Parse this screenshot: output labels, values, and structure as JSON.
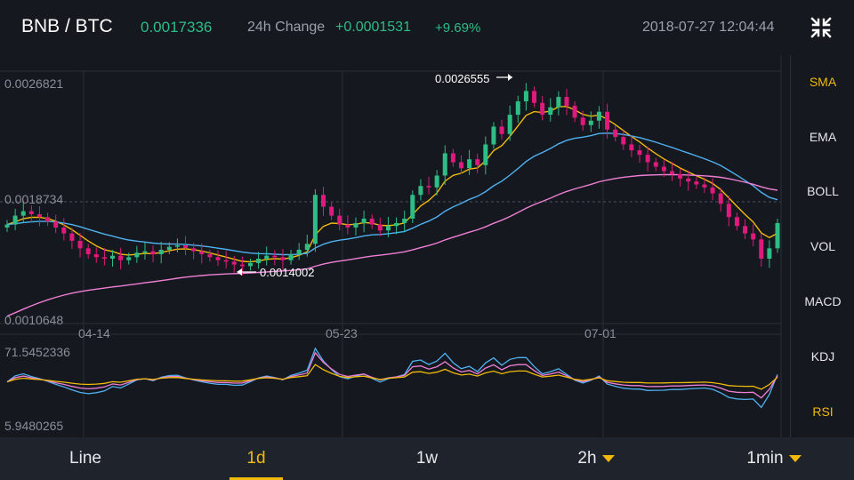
{
  "header": {
    "pair": "BNB / BTC",
    "price": "0.0017336",
    "change_label": "24h Change",
    "change_abs": "+0.0001531",
    "change_pct": "+9.69%",
    "datetime": "2018-07-27 12:04:44"
  },
  "chart": {
    "y_labels": {
      "top": "0.0026821",
      "mid": "0.0018734",
      "bottom": "0.0010648"
    },
    "x_labels": [
      "04-14",
      "05-23",
      "07-01"
    ],
    "annotations": {
      "high": "0.0026555",
      "low": "0.0014002"
    },
    "rsi_labels": {
      "top": "71.5452336",
      "bottom": "5.9480265"
    }
  },
  "chart_data": {
    "type": "candlestick",
    "price_range": [
      0.0010648,
      0.0026821
    ],
    "reference_line": 0.0018734,
    "x_ticks": [
      "04-14",
      "05-23",
      "07-01"
    ],
    "high_marker": 0.0026555,
    "low_marker": 0.0014002,
    "candles_close": [
      0.00172,
      0.00178,
      0.00181,
      0.00179,
      0.00177,
      0.00174,
      0.0017,
      0.00166,
      0.00161,
      0.00156,
      0.00152,
      0.0015,
      0.00149,
      0.00151,
      0.00148,
      0.0015,
      0.00153,
      0.00154,
      0.00152,
      0.00155,
      0.00157,
      0.00158,
      0.00156,
      0.00154,
      0.00152,
      0.0015,
      0.00148,
      0.00147,
      0.00145,
      0.00144,
      0.00146,
      0.00149,
      0.00151,
      0.0015,
      0.00148,
      0.00152,
      0.00155,
      0.00159,
      0.00192,
      0.00184,
      0.00178,
      0.00172,
      0.0017,
      0.00173,
      0.00176,
      0.00172,
      0.00168,
      0.00171,
      0.00173,
      0.00176,
      0.00192,
      0.00198,
      0.00197,
      0.00205,
      0.0022,
      0.00214,
      0.0021,
      0.00216,
      0.00212,
      0.00226,
      0.00238,
      0.00233,
      0.00246,
      0.00255,
      0.00262,
      0.00254,
      0.00246,
      0.00251,
      0.00258,
      0.00252,
      0.00244,
      0.00239,
      0.00242,
      0.00248,
      0.00236,
      0.00231,
      0.00226,
      0.00222,
      0.00219,
      0.00214,
      0.00211,
      0.00208,
      0.00206,
      0.00203,
      0.00201,
      0.00199,
      0.00197,
      0.00193,
      0.00186,
      0.00177,
      0.00171,
      0.00166,
      0.00162,
      0.00149,
      0.00156,
      0.00173
    ],
    "rsi_range": [
      5.9480265,
      71.5452336
    ],
    "colors": {
      "up": "#2ebd85",
      "down": "#e0197d",
      "ma7": "#f0b90b",
      "ma25": "#4fb1f0",
      "ma99": "#ee7fd4"
    },
    "legend": "none"
  },
  "indicators": [
    "SMA",
    "EMA",
    "BOLL",
    "VOL",
    "MACD",
    "KDJ",
    "RSI"
  ],
  "tabs": [
    "Line",
    "1d",
    "1w",
    "2h",
    "1min"
  ]
}
